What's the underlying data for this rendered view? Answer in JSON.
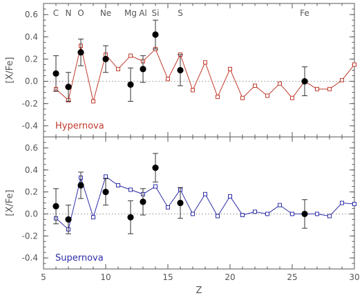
{
  "chart_data": [
    {
      "type": "line",
      "panel": "top",
      "annotation": "Hypernova",
      "ylabel": "[X/Fe]",
      "xlim": [
        5,
        30
      ],
      "ylim": [
        -0.5,
        0.7
      ],
      "xticks": [
        5,
        10,
        15,
        20,
        25,
        30
      ],
      "yticks": [
        -0.4,
        -0.2,
        0.0,
        0.2,
        0.4,
        0.6
      ],
      "series": [
        {
          "kind": "model",
          "color": "#c0392b",
          "marker": "open-square",
          "x": [
            6,
            7,
            8,
            9,
            10,
            11,
            12,
            13,
            14,
            15,
            16,
            17,
            18,
            19,
            20,
            21,
            22,
            23,
            24,
            25,
            26,
            27,
            28,
            29,
            30
          ],
          "values": [
            -0.07,
            -0.17,
            0.32,
            -0.18,
            0.24,
            0.11,
            0.23,
            0.18,
            0.29,
            0.02,
            0.24,
            -0.08,
            0.17,
            -0.14,
            0.11,
            -0.15,
            -0.04,
            -0.13,
            -0.02,
            -0.15,
            0.0,
            -0.07,
            -0.07,
            0.01,
            0.15
          ]
        },
        {
          "kind": "observed",
          "color": "#000000",
          "marker": "filled-circle",
          "x": [
            6,
            7,
            8,
            10,
            12,
            13,
            14,
            16,
            26
          ],
          "values": [
            0.07,
            -0.05,
            0.26,
            0.2,
            -0.03,
            0.11,
            0.42,
            0.1,
            0.0
          ],
          "error": [
            0.16,
            0.13,
            0.12,
            0.12,
            0.15,
            0.12,
            0.13,
            0.14,
            0.13
          ]
        }
      ]
    },
    {
      "type": "line",
      "panel": "bottom",
      "annotation": "Supernova",
      "ylabel": "[X/Fe]",
      "xlabel": "Z",
      "xlim": [
        5,
        30
      ],
      "ylim": [
        -0.5,
        0.7
      ],
      "xticks": [
        5,
        10,
        15,
        20,
        25,
        30
      ],
      "yticks": [
        -0.4,
        -0.2,
        0.0,
        0.2,
        0.4,
        0.6
      ],
      "series": [
        {
          "kind": "model",
          "color": "#2d2da8",
          "marker": "open-square",
          "x": [
            6,
            7,
            8,
            9,
            10,
            11,
            12,
            13,
            14,
            15,
            16,
            17,
            18,
            19,
            20,
            21,
            22,
            23,
            24,
            25,
            26,
            27,
            28,
            29,
            30
          ],
          "values": [
            -0.04,
            -0.14,
            0.33,
            -0.03,
            0.34,
            0.26,
            0.22,
            0.18,
            0.25,
            0.06,
            0.22,
            0.0,
            0.18,
            -0.02,
            0.16,
            -0.01,
            0.02,
            0.0,
            0.08,
            0.0,
            0.0,
            0.0,
            -0.02,
            0.1,
            0.09
          ]
        },
        {
          "kind": "observed",
          "color": "#000000",
          "marker": "filled-circle",
          "x": [
            6,
            7,
            8,
            10,
            12,
            13,
            14,
            16,
            26
          ],
          "values": [
            0.07,
            -0.05,
            0.26,
            0.2,
            -0.03,
            0.11,
            0.42,
            0.1,
            0.0
          ],
          "error": [
            0.16,
            0.13,
            0.12,
            0.12,
            0.15,
            0.12,
            0.13,
            0.14,
            0.13
          ]
        }
      ]
    }
  ],
  "element_labels": [
    {
      "z": 6,
      "symbol": "C"
    },
    {
      "z": 7,
      "symbol": "N"
    },
    {
      "z": 8,
      "symbol": "O"
    },
    {
      "z": 10,
      "symbol": "Ne"
    },
    {
      "z": 12,
      "symbol": "Mg"
    },
    {
      "z": 13,
      "symbol": "Al"
    },
    {
      "z": 14,
      "symbol": "Si"
    },
    {
      "z": 16,
      "symbol": "S"
    },
    {
      "z": 26,
      "symbol": "Fe"
    }
  ]
}
